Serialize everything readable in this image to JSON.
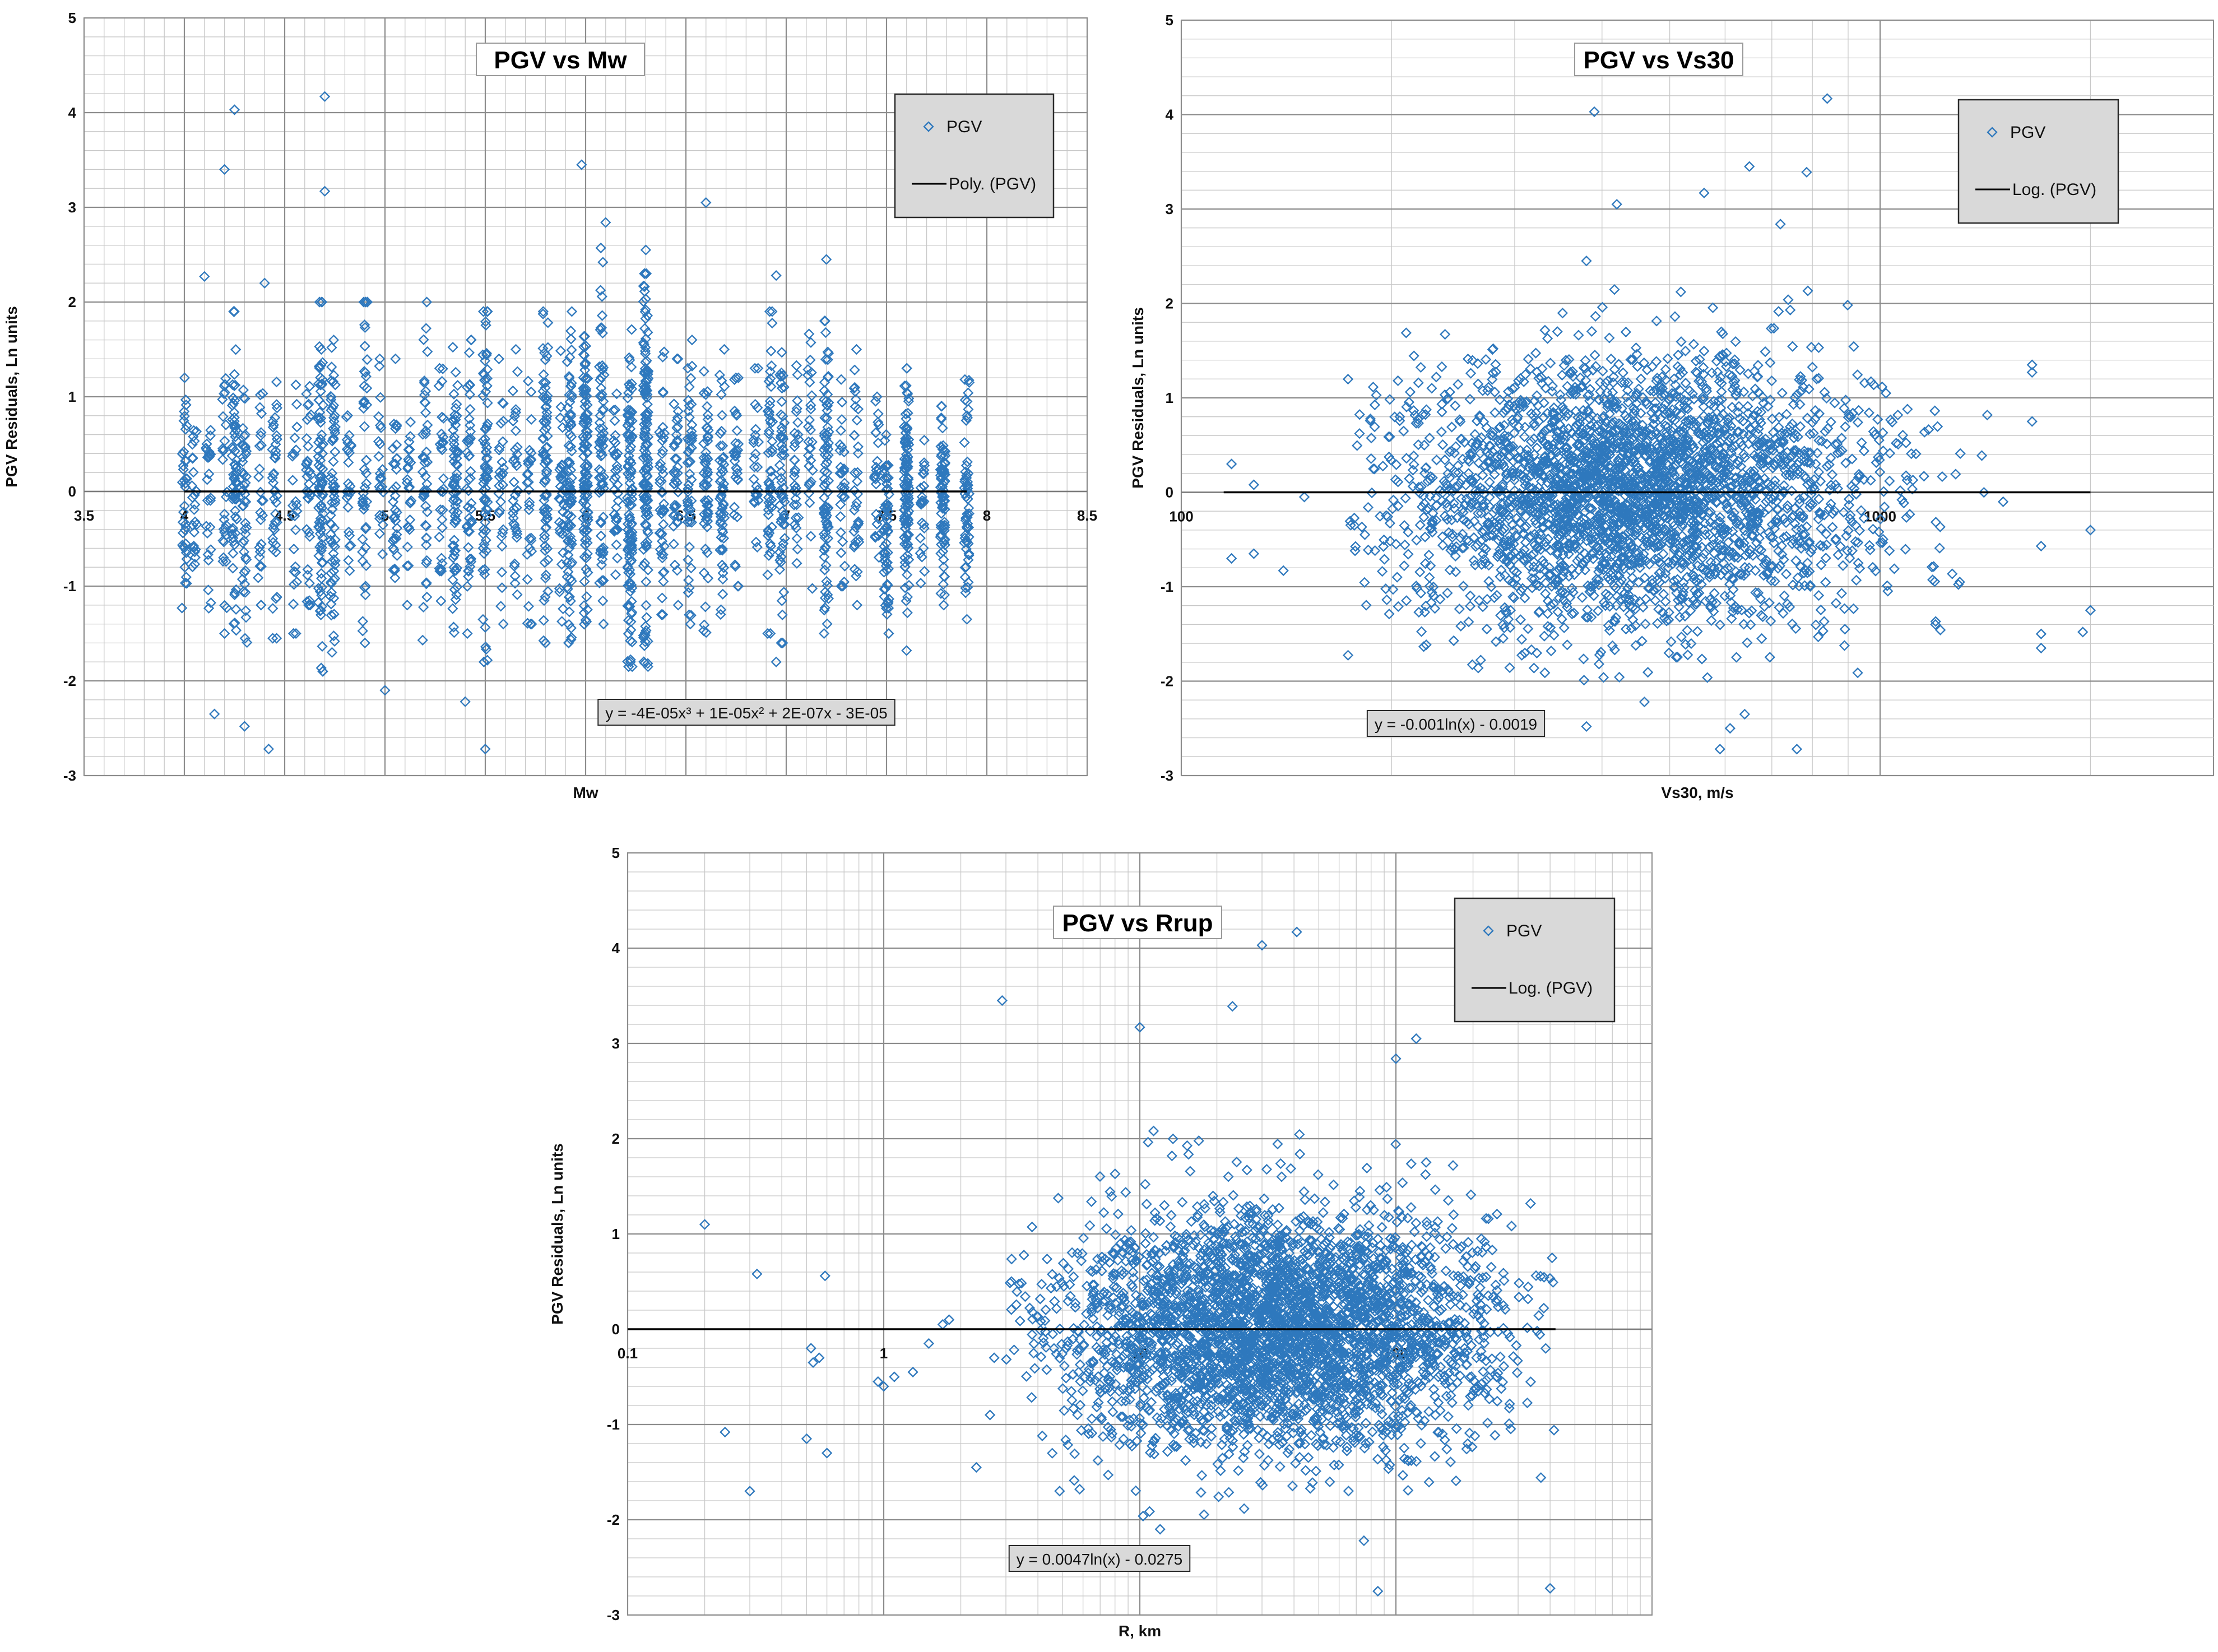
{
  "colors": {
    "marker": "#2e78bd",
    "grid_major": "#8c8c8c",
    "grid_minor": "#c8c8c8",
    "trend": "#000000",
    "legend_bg": "#d9d9d9"
  },
  "chart_data": [
    {
      "id": "mw",
      "type": "scatter",
      "title": "PGV vs Mw",
      "xlabel": "Mw",
      "ylabel": "PGV Residuals, Ln units",
      "xscale": "linear",
      "xlim": [
        3.5,
        8.5
      ],
      "ylim": [
        -3,
        5
      ],
      "xticks": [
        3.5,
        4,
        4.5,
        5,
        5.5,
        6,
        6.5,
        7,
        7.5,
        8,
        8.5
      ],
      "xtick_labels": [
        "3.5",
        "4",
        "4.5",
        "5",
        "5.5",
        "6",
        "6.5",
        "7",
        "7.5",
        "8",
        "8.5"
      ],
      "yticks": [
        -3,
        -2,
        -1,
        0,
        1,
        2,
        3,
        4,
        5
      ],
      "ytick_labels": [
        "-3",
        "-2",
        "-1",
        "0",
        "1",
        "2",
        "3",
        "4",
        "5"
      ],
      "legend": {
        "marker_label": "PGV",
        "line_label": "Poly. (PGV)",
        "position": "top-right"
      },
      "trendline": {
        "equation": "y = -4E-05x³ + 1E-05x² + 2E-07x - 3E-05",
        "type": "polynomial"
      },
      "series": [
        {
          "name": "PGV",
          "notable_points": [
            {
              "x": 4.25,
              "y": 4.03
            },
            {
              "x": 4.7,
              "y": 4.17
            },
            {
              "x": 4.2,
              "y": 3.4
            },
            {
              "x": 4.7,
              "y": 3.17
            },
            {
              "x": 5.98,
              "y": 3.45
            },
            {
              "x": 6.6,
              "y": 3.05
            },
            {
              "x": 6.1,
              "y": 2.84
            },
            {
              "x": 6.3,
              "y": 2.55
            },
            {
              "x": 7.2,
              "y": 2.45
            },
            {
              "x": 4.1,
              "y": 2.27
            },
            {
              "x": 6.95,
              "y": 2.28
            },
            {
              "x": 4.4,
              "y": 2.2
            },
            {
              "x": 4.15,
              "y": -2.35
            },
            {
              "x": 4.3,
              "y": -2.48
            },
            {
              "x": 4.42,
              "y": -2.72
            },
            {
              "x": 5.0,
              "y": -2.1
            },
            {
              "x": 5.4,
              "y": -2.22
            },
            {
              "x": 5.5,
              "y": -2.72
            },
            {
              "x": 7.6,
              "y": -1.68
            },
            {
              "x": 6.95,
              "y": -1.8
            }
          ],
          "columns": [
            {
              "x": 4.0,
              "n": 40,
              "lo": -1.4,
              "hi": 1.2
            },
            {
              "x": 4.05,
              "n": 25,
              "lo": -1.0,
              "hi": 1.0
            },
            {
              "x": 4.12,
              "n": 25,
              "lo": -1.3,
              "hi": 1.4
            },
            {
              "x": 4.2,
              "n": 30,
              "lo": -1.5,
              "hi": 1.7
            },
            {
              "x": 4.25,
              "n": 70,
              "lo": -1.9,
              "hi": 1.9
            },
            {
              "x": 4.3,
              "n": 45,
              "lo": -1.6,
              "hi": 1.5
            },
            {
              "x": 4.38,
              "n": 25,
              "lo": -1.2,
              "hi": 1.3
            },
            {
              "x": 4.45,
              "n": 40,
              "lo": -1.55,
              "hi": 1.35
            },
            {
              "x": 4.55,
              "n": 25,
              "lo": -1.5,
              "hi": 1.4
            },
            {
              "x": 4.62,
              "n": 35,
              "lo": -1.2,
              "hi": 1.5
            },
            {
              "x": 4.68,
              "n": 90,
              "lo": -1.9,
              "hi": 2.0
            },
            {
              "x": 4.74,
              "n": 70,
              "lo": -1.7,
              "hi": 1.8
            },
            {
              "x": 4.82,
              "n": 25,
              "lo": -1.2,
              "hi": 1.2
            },
            {
              "x": 4.9,
              "n": 45,
              "lo": -1.6,
              "hi": 2.0
            },
            {
              "x": 4.98,
              "n": 25,
              "lo": -1.4,
              "hi": 1.4
            },
            {
              "x": 5.05,
              "n": 35,
              "lo": -1.5,
              "hi": 1.4
            },
            {
              "x": 5.12,
              "n": 25,
              "lo": -1.2,
              "hi": 1.2
            },
            {
              "x": 5.2,
              "n": 45,
              "lo": -1.6,
              "hi": 2.0
            },
            {
              "x": 5.28,
              "n": 30,
              "lo": -1.3,
              "hi": 1.3
            },
            {
              "x": 5.35,
              "n": 70,
              "lo": -1.7,
              "hi": 1.6
            },
            {
              "x": 5.42,
              "n": 45,
              "lo": -1.5,
              "hi": 1.6
            },
            {
              "x": 5.5,
              "n": 70,
              "lo": -1.8,
              "hi": 1.9
            },
            {
              "x": 5.58,
              "n": 30,
              "lo": -1.4,
              "hi": 1.4
            },
            {
              "x": 5.65,
              "n": 35,
              "lo": -1.3,
              "hi": 1.5
            },
            {
              "x": 5.72,
              "n": 30,
              "lo": -1.4,
              "hi": 1.5
            },
            {
              "x": 5.8,
              "n": 80,
              "lo": -1.6,
              "hi": 1.9
            },
            {
              "x": 5.88,
              "n": 35,
              "lo": -1.4,
              "hi": 1.5
            },
            {
              "x": 5.92,
              "n": 90,
              "lo": -1.6,
              "hi": 1.9
            },
            {
              "x": 6.0,
              "n": 110,
              "lo": -1.5,
              "hi": 2.0
            },
            {
              "x": 6.08,
              "n": 70,
              "lo": -1.4,
              "hi": 2.6
            },
            {
              "x": 6.15,
              "n": 35,
              "lo": -1.2,
              "hi": 1.5
            },
            {
              "x": 6.22,
              "n": 120,
              "lo": -1.85,
              "hi": 1.8
            },
            {
              "x": 6.3,
              "n": 140,
              "lo": -1.85,
              "hi": 2.3
            },
            {
              "x": 6.38,
              "n": 45,
              "lo": -1.3,
              "hi": 1.5
            },
            {
              "x": 6.45,
              "n": 40,
              "lo": -1.2,
              "hi": 1.4
            },
            {
              "x": 6.52,
              "n": 50,
              "lo": -1.4,
              "hi": 1.6
            },
            {
              "x": 6.6,
              "n": 55,
              "lo": -1.5,
              "hi": 1.6
            },
            {
              "x": 6.68,
              "n": 55,
              "lo": -1.3,
              "hi": 1.5
            },
            {
              "x": 6.75,
              "n": 30,
              "lo": -1.0,
              "hi": 1.2
            },
            {
              "x": 6.85,
              "n": 25,
              "lo": -1.0,
              "hi": 1.3
            },
            {
              "x": 6.92,
              "n": 55,
              "lo": -1.5,
              "hi": 1.9
            },
            {
              "x": 6.98,
              "n": 60,
              "lo": -1.6,
              "hi": 1.7
            },
            {
              "x": 7.05,
              "n": 30,
              "lo": -1.3,
              "hi": 1.6
            },
            {
              "x": 7.12,
              "n": 30,
              "lo": -1.2,
              "hi": 1.8
            },
            {
              "x": 7.2,
              "n": 80,
              "lo": -1.5,
              "hi": 1.8
            },
            {
              "x": 7.28,
              "n": 30,
              "lo": -1.0,
              "hi": 1.3
            },
            {
              "x": 7.35,
              "n": 35,
              "lo": -1.2,
              "hi": 1.5
            },
            {
              "x": 7.45,
              "n": 25,
              "lo": -1.0,
              "hi": 1.0
            },
            {
              "x": 7.5,
              "n": 60,
              "lo": -1.5,
              "hi": 0.6
            },
            {
              "x": 7.6,
              "n": 110,
              "lo": -1.35,
              "hi": 1.3
            },
            {
              "x": 7.68,
              "n": 25,
              "lo": -1.0,
              "hi": 0.6
            },
            {
              "x": 7.78,
              "n": 80,
              "lo": -1.2,
              "hi": 0.9
            },
            {
              "x": 7.9,
              "n": 60,
              "lo": -1.35,
              "hi": 1.25
            }
          ]
        }
      ]
    },
    {
      "id": "vs30",
      "type": "scatter",
      "title": "PGV vs Vs30",
      "xlabel": "Vs30, m/s",
      "ylabel": "PGV Residuals, Ln units",
      "xscale": "log",
      "xlim": [
        100,
        3000
      ],
      "ylim": [
        -3,
        5
      ],
      "xticks": [
        100,
        1000
      ],
      "xtick_labels": [
        "100",
        "1000"
      ],
      "yticks": [
        -3,
        -2,
        -1,
        0,
        1,
        2,
        3,
        4,
        5
      ],
      "ytick_labels": [
        "-3",
        "-2",
        "-1",
        "0",
        "1",
        "2",
        "3",
        "4",
        "5"
      ],
      "legend": {
        "marker_label": "PGV",
        "line_label": "Log. (PGV)",
        "position": "top-right"
      },
      "trendline": {
        "equation": "y = -0.001ln(x) - 0.0019",
        "type": "logarithmic",
        "x_range": [
          115,
          2000
        ]
      },
      "series": [
        {
          "name": "PGV",
          "notable_points": [
            {
              "x": 390,
              "y": 4.03
            },
            {
              "x": 840,
              "y": 4.17
            },
            {
              "x": 785,
              "y": 3.39
            },
            {
              "x": 650,
              "y": 3.45
            },
            {
              "x": 560,
              "y": 3.17
            },
            {
              "x": 420,
              "y": 3.05
            },
            {
              "x": 720,
              "y": 2.84
            },
            {
              "x": 380,
              "y": 2.45
            },
            {
              "x": 380,
              "y": -2.48
            },
            {
              "x": 460,
              "y": -2.22
            },
            {
              "x": 1950,
              "y": -1.48
            },
            {
              "x": 2000,
              "y": -0.4
            },
            {
              "x": 2000,
              "y": -1.25
            },
            {
              "x": 1700,
              "y": -1.5
            },
            {
              "x": 1700,
              "y": -1.65
            },
            {
              "x": 1650,
              "y": 1.35
            },
            {
              "x": 1650,
              "y": 1.27
            },
            {
              "x": 1650,
              "y": 0.75
            },
            {
              "x": 1700,
              "y": -0.57
            },
            {
              "x": 1500,
              "y": -0.1
            },
            {
              "x": 118,
              "y": 0.3
            },
            {
              "x": 118,
              "y": -0.7
            },
            {
              "x": 127,
              "y": 0.08
            },
            {
              "x": 127,
              "y": -0.65
            },
            {
              "x": 140,
              "y": -0.83
            },
            {
              "x": 150,
              "y": -0.05
            },
            {
              "x": 590,
              "y": -2.72
            },
            {
              "x": 760,
              "y": -2.72
            },
            {
              "x": 610,
              "y": -2.5
            },
            {
              "x": 640,
              "y": -2.35
            },
            {
              "x": 1300,
              "y": -0.95
            },
            {
              "x": 1200,
              "y": -1.4
            }
          ],
          "cloud": {
            "n": 3200,
            "x_center": 440,
            "x_spread_log10": 0.17,
            "x_min": 170,
            "x_max": 1500,
            "y_sd": 0.7
          }
        }
      ]
    },
    {
      "id": "rrup",
      "type": "scatter",
      "title": "PGV vs Rrup",
      "xlabel": "R, km",
      "ylabel": "PGV Residuals, Ln units",
      "xscale": "log",
      "xlim": [
        0.1,
        1000
      ],
      "ylim": [
        -3,
        5
      ],
      "xticks": [
        0.1,
        1,
        10,
        100
      ],
      "xtick_labels": [
        "0.1",
        "1",
        "10",
        "100"
      ],
      "yticks": [
        -3,
        -2,
        -1,
        0,
        1,
        2,
        3,
        4,
        5
      ],
      "ytick_labels": [
        "-3",
        "-2",
        "-1",
        "0",
        "1",
        "2",
        "3",
        "4",
        "5"
      ],
      "legend": {
        "marker_label": "PGV",
        "line_label": "Log. (PGV)",
        "position": "top-right"
      },
      "trendline": {
        "equation": "y = 0.0047ln(x) - 0.0275",
        "type": "logarithmic",
        "x_range": [
          0.1,
          420
        ]
      },
      "series": [
        {
          "name": "PGV",
          "notable_points": [
            {
              "x": 0.2,
              "y": 1.1
            },
            {
              "x": 0.24,
              "y": -1.08
            },
            {
              "x": 0.3,
              "y": -1.7
            },
            {
              "x": 0.32,
              "y": 0.58
            },
            {
              "x": 0.5,
              "y": -1.15
            },
            {
              "x": 0.52,
              "y": -0.2
            },
            {
              "x": 0.53,
              "y": -0.35
            },
            {
              "x": 0.56,
              "y": -0.3
            },
            {
              "x": 0.59,
              "y": 0.56
            },
            {
              "x": 0.6,
              "y": -1.3
            },
            {
              "x": 0.95,
              "y": -0.55
            },
            {
              "x": 1.0,
              "y": -0.6
            },
            {
              "x": 1.1,
              "y": -0.5
            },
            {
              "x": 1.3,
              "y": -0.45
            },
            {
              "x": 1.5,
              "y": -0.15
            },
            {
              "x": 1.8,
              "y": 0.1
            },
            {
              "x": 1.7,
              "y": 0.05
            },
            {
              "x": 2.3,
              "y": -1.45
            },
            {
              "x": 2.6,
              "y": -0.9
            },
            {
              "x": 2.7,
              "y": -0.3
            },
            {
              "x": 2.9,
              "y": 3.45
            },
            {
              "x": 10,
              "y": 3.17
            },
            {
              "x": 23,
              "y": 3.39
            },
            {
              "x": 30,
              "y": 4.03
            },
            {
              "x": 41,
              "y": 4.17
            },
            {
              "x": 100,
              "y": 2.84
            },
            {
              "x": 120,
              "y": 3.05
            },
            {
              "x": 85,
              "y": -2.75
            },
            {
              "x": 400,
              "y": -2.72
            },
            {
              "x": 14,
              "y": -2.48
            },
            {
              "x": 12,
              "y": -2.1
            },
            {
              "x": 75,
              "y": -2.22
            }
          ],
          "cloud": {
            "n": 3600,
            "x_center": 35,
            "x_spread_log10": 0.42,
            "x_min": 3,
            "x_max": 420,
            "y_sd": 0.62
          }
        }
      ]
    }
  ]
}
